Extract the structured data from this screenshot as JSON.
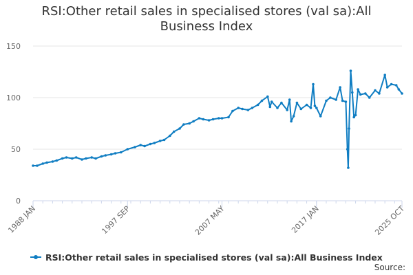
{
  "chart_data": {
    "type": "line",
    "title": "RSI:Other retail sales in specialised stores (val sa):All Business Index",
    "title_lines": [
      "RSI:Other retail sales in specialised stores (val sa):All",
      "Business Index"
    ],
    "xlabel": "",
    "ylabel": "",
    "ylim": [
      0,
      150
    ],
    "yticks": [
      0,
      50,
      100,
      150
    ],
    "xtick_labels": [
      "1988 JAN",
      "1997 SEP",
      "2007 MAY",
      "2017 JAN",
      "2025 OCT"
    ],
    "xtick_dates": [
      "1988-01",
      "1997-09",
      "2007-05",
      "2017-01",
      "2025-10"
    ],
    "grid": true,
    "legend_position": "bottom",
    "color": "#0f7dc2",
    "series": [
      {
        "name": "RSI:Other retail sales in specialised stores (val sa):All Business Index",
        "points": [
          [
            "1988-01",
            34
          ],
          [
            "1988-06",
            34
          ],
          [
            "1989-01",
            36
          ],
          [
            "1989-06",
            37
          ],
          [
            "1990-01",
            38
          ],
          [
            "1990-06",
            39
          ],
          [
            "1991-01",
            41
          ],
          [
            "1991-06",
            42
          ],
          [
            "1992-01",
            41
          ],
          [
            "1992-06",
            42
          ],
          [
            "1993-01",
            40
          ],
          [
            "1993-06",
            41
          ],
          [
            "1994-01",
            42
          ],
          [
            "1994-06",
            41
          ],
          [
            "1995-01",
            43
          ],
          [
            "1995-06",
            44
          ],
          [
            "1996-01",
            45
          ],
          [
            "1996-06",
            46
          ],
          [
            "1997-01",
            47
          ],
          [
            "1997-09",
            50
          ],
          [
            "1998-06",
            52
          ],
          [
            "1999-01",
            54
          ],
          [
            "1999-06",
            53
          ],
          [
            "2000-01",
            55
          ],
          [
            "2000-06",
            56
          ],
          [
            "2001-01",
            58
          ],
          [
            "2001-06",
            59
          ],
          [
            "2002-01",
            63
          ],
          [
            "2002-06",
            67
          ],
          [
            "2003-01",
            70
          ],
          [
            "2003-06",
            74
          ],
          [
            "2004-01",
            75
          ],
          [
            "2004-06",
            77
          ],
          [
            "2005-01",
            80
          ],
          [
            "2005-06",
            79
          ],
          [
            "2006-01",
            78
          ],
          [
            "2006-06",
            79
          ],
          [
            "2007-01",
            80
          ],
          [
            "2007-05",
            80
          ],
          [
            "2008-01",
            81
          ],
          [
            "2008-06",
            87
          ],
          [
            "2009-01",
            90
          ],
          [
            "2009-06",
            89
          ],
          [
            "2010-01",
            88
          ],
          [
            "2010-06",
            90
          ],
          [
            "2011-01",
            93
          ],
          [
            "2011-06",
            97
          ],
          [
            "2012-01",
            101
          ],
          [
            "2012-04",
            91
          ],
          [
            "2012-06",
            96
          ],
          [
            "2013-01",
            90
          ],
          [
            "2013-06",
            95
          ],
          [
            "2014-01",
            88
          ],
          [
            "2014-04",
            98
          ],
          [
            "2014-06",
            77
          ],
          [
            "2014-09",
            82
          ],
          [
            "2015-01",
            95
          ],
          [
            "2015-06",
            89
          ],
          [
            "2016-01",
            93
          ],
          [
            "2016-06",
            90
          ],
          [
            "2016-09",
            113
          ],
          [
            "2016-11",
            92
          ],
          [
            "2017-01",
            90
          ],
          [
            "2017-06",
            82
          ],
          [
            "2018-01",
            97
          ],
          [
            "2018-06",
            100
          ],
          [
            "2019-01",
            98
          ],
          [
            "2019-06",
            110
          ],
          [
            "2019-09",
            97
          ],
          [
            "2020-01",
            96
          ],
          [
            "2020-03",
            50
          ],
          [
            "2020-04",
            32
          ],
          [
            "2020-05",
            70
          ],
          [
            "2020-07",
            126
          ],
          [
            "2020-09",
            105
          ],
          [
            "2020-11",
            81
          ],
          [
            "2021-01",
            83
          ],
          [
            "2021-04",
            108
          ],
          [
            "2021-07",
            103
          ],
          [
            "2022-01",
            104
          ],
          [
            "2022-06",
            100
          ],
          [
            "2023-01",
            107
          ],
          [
            "2023-06",
            104
          ],
          [
            "2024-01",
            122
          ],
          [
            "2024-04",
            110
          ],
          [
            "2024-09",
            113
          ],
          [
            "2025-03",
            112
          ],
          [
            "2025-06",
            108
          ],
          [
            "2025-10",
            104
          ]
        ]
      }
    ],
    "source_label": "Source:"
  }
}
